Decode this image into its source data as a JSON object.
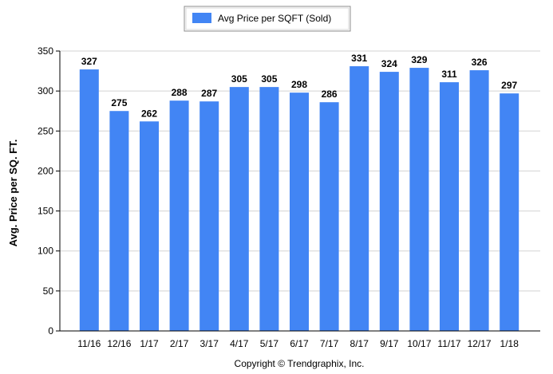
{
  "chart_data": {
    "type": "bar",
    "title": "",
    "xlabel": "",
    "ylabel": "Avg. Price per SQ. FT.",
    "categories": [
      "11/16",
      "12/16",
      "1/17",
      "2/17",
      "3/17",
      "4/17",
      "5/17",
      "6/17",
      "7/17",
      "8/17",
      "9/17",
      "10/17",
      "11/17",
      "12/17",
      "1/18"
    ],
    "series": [
      {
        "name": "Avg Price per SQFT (Sold)",
        "values": [
          327,
          275,
          262,
          288,
          287,
          305,
          305,
          298,
          286,
          331,
          324,
          329,
          311,
          326,
          297
        ],
        "color": "#4285f4"
      }
    ],
    "ylim": [
      0,
      350
    ],
    "yticks": [
      0,
      50,
      100,
      150,
      200,
      250,
      300,
      350
    ],
    "grid": true,
    "legend_position": "top-center",
    "data_labels": true
  },
  "footer": {
    "copyright": "Copyright © Trendgraphix, Inc."
  }
}
